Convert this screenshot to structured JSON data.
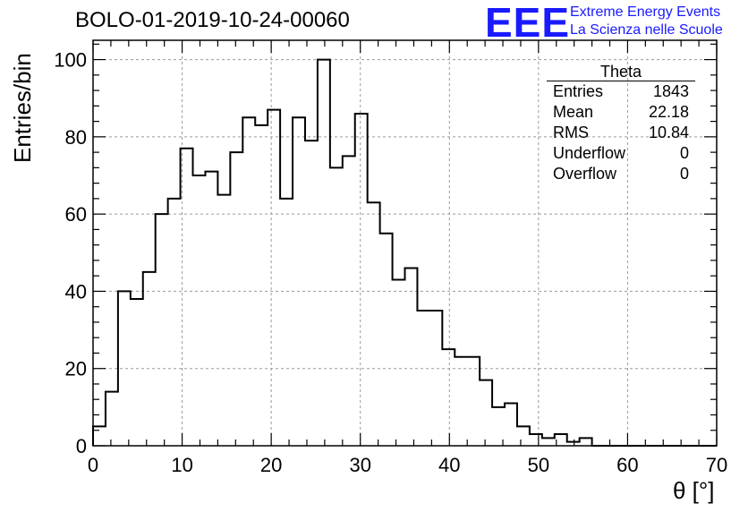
{
  "header": {
    "title": "BOLO-01-2019-10-24-00060",
    "logo_text": "EEE",
    "brand_line1": "Extreme Energy Events",
    "brand_line2": "La Scienza nelle Scuole",
    "brand_color": "#1a1aff"
  },
  "stats_box": {
    "name": "Theta",
    "rows": [
      {
        "label": "Entries",
        "value": "1843"
      },
      {
        "label": "Mean",
        "value": "22.18"
      },
      {
        "label": "RMS",
        "value": "10.84"
      },
      {
        "label": "Underflow",
        "value": "0"
      },
      {
        "label": "Overflow",
        "value": "0"
      }
    ]
  },
  "chart_data": {
    "type": "bar",
    "style": "step-histogram",
    "xlabel": "θ [°]",
    "ylabel": "Entries/bin",
    "xlim": [
      0,
      70
    ],
    "ylim": [
      0,
      105
    ],
    "bin_width": 1.4,
    "grid": true,
    "xticks": [
      0,
      10,
      20,
      30,
      40,
      50,
      60,
      70
    ],
    "yticks": [
      0,
      20,
      40,
      60,
      80,
      100
    ],
    "bin_edges_start": 0,
    "values": [
      5,
      14,
      40,
      38,
      45,
      60,
      64,
      77,
      70,
      71,
      65,
      76,
      85,
      83,
      87,
      64,
      85,
      79,
      100,
      72,
      75,
      86,
      63,
      55,
      43,
      46,
      35,
      35,
      25,
      23,
      23,
      17,
      10,
      11,
      5,
      3,
      2,
      3,
      1,
      2,
      0,
      0,
      0,
      0,
      0,
      0,
      0,
      0,
      0,
      0
    ]
  }
}
